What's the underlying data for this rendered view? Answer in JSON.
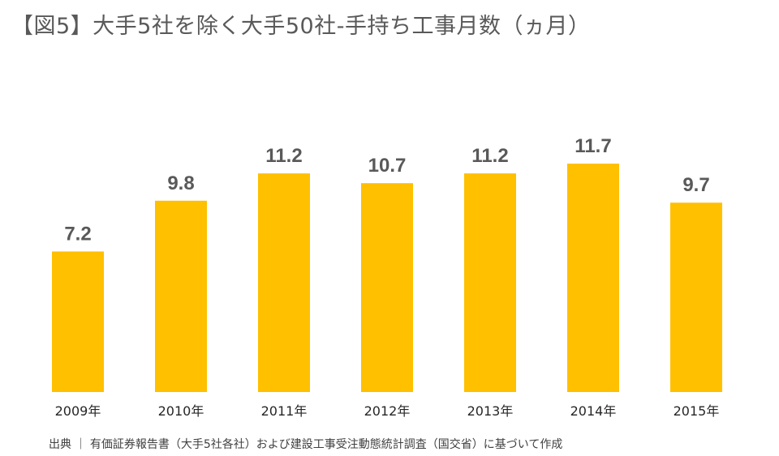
{
  "chart_data": {
    "type": "bar",
    "title": "【図5】大手5社を除く大手50社-手持ち工事月数（ヵ月）",
    "categories": [
      "2009年",
      "2010年",
      "2011年",
      "2012年",
      "2013年",
      "2014年",
      "2015年"
    ],
    "values": [
      7.2,
      9.8,
      11.2,
      10.7,
      11.2,
      11.7,
      9.7
    ],
    "value_labels": [
      "7.2",
      "9.8",
      "11.2",
      "10.7",
      "11.2",
      "11.7",
      "9.7"
    ],
    "ylim": [
      0,
      14
    ],
    "grid": false,
    "legend": "none",
    "bar_color": "#FFC000"
  },
  "source": "出典 ｜ 有価証券報告書（大手5社各社）および建設工事受注動態統計調査（国交省）に基づいて作成"
}
